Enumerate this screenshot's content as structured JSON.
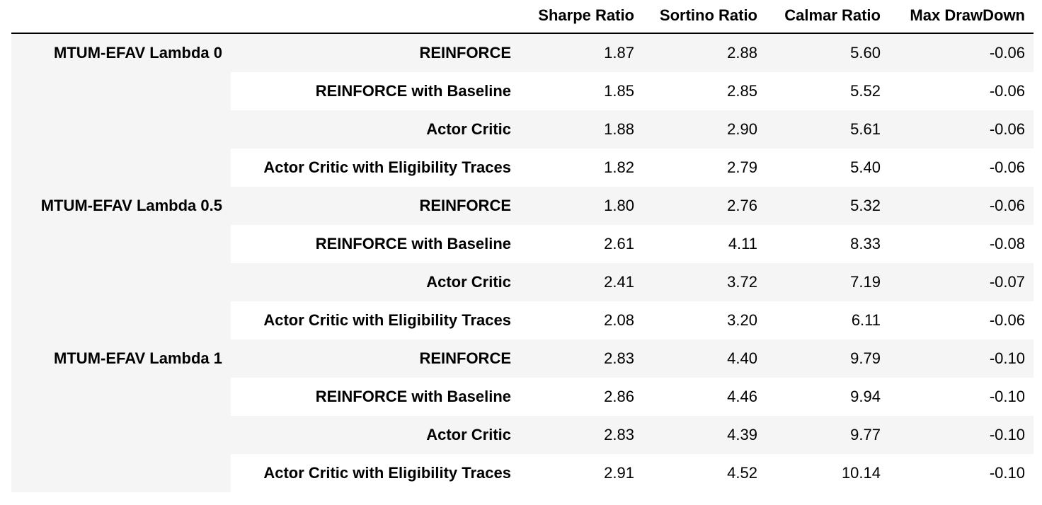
{
  "table": {
    "columns": [
      "Sharpe Ratio",
      "Sortino Ratio",
      "Calmar Ratio",
      "Max DrawDown"
    ],
    "groups": [
      {
        "label": "MTUM-EFAV Lambda 0",
        "rows": [
          {
            "algo": "REINFORCE",
            "values": [
              "1.87",
              "2.88",
              "5.60",
              "-0.06"
            ]
          },
          {
            "algo": "REINFORCE with Baseline",
            "values": [
              "1.85",
              "2.85",
              "5.52",
              "-0.06"
            ]
          },
          {
            "algo": "Actor Critic",
            "values": [
              "1.88",
              "2.90",
              "5.61",
              "-0.06"
            ]
          },
          {
            "algo": "Actor Critic with Eligibility Traces",
            "values": [
              "1.82",
              "2.79",
              "5.40",
              "-0.06"
            ]
          }
        ]
      },
      {
        "label": "MTUM-EFAV Lambda 0.5",
        "rows": [
          {
            "algo": "REINFORCE",
            "values": [
              "1.80",
              "2.76",
              "5.32",
              "-0.06"
            ]
          },
          {
            "algo": "REINFORCE with Baseline",
            "values": [
              "2.61",
              "4.11",
              "8.33",
              "-0.08"
            ]
          },
          {
            "algo": "Actor Critic",
            "values": [
              "2.41",
              "3.72",
              "7.19",
              "-0.07"
            ]
          },
          {
            "algo": "Actor Critic with Eligibility Traces",
            "values": [
              "2.08",
              "3.20",
              "6.11",
              "-0.06"
            ]
          }
        ]
      },
      {
        "label": "MTUM-EFAV Lambda 1",
        "rows": [
          {
            "algo": "REINFORCE",
            "values": [
              "2.83",
              "4.40",
              "9.79",
              "-0.10"
            ]
          },
          {
            "algo": "REINFORCE with Baseline",
            "values": [
              "2.86",
              "4.46",
              "9.94",
              "-0.10"
            ]
          },
          {
            "algo": "Actor Critic",
            "values": [
              "2.83",
              "4.39",
              "9.77",
              "-0.10"
            ]
          },
          {
            "algo": "Actor Critic with Eligibility Traces",
            "values": [
              "2.91",
              "4.52",
              "10.14",
              "-0.10"
            ]
          }
        ]
      }
    ],
    "colors": {
      "stripe": "#f5f5f5",
      "background": "#ffffff",
      "rule": "#000000"
    }
  },
  "chart_data": {
    "type": "table",
    "columns": [
      "Sharpe Ratio",
      "Sortino Ratio",
      "Calmar Ratio",
      "Max DrawDown"
    ],
    "index_levels": [
      [
        "MTUM-EFAV Lambda 0",
        "MTUM-EFAV Lambda 0.5",
        "MTUM-EFAV Lambda 1"
      ],
      [
        "REINFORCE",
        "REINFORCE with Baseline",
        "Actor Critic",
        "Actor Critic with Eligibility Traces"
      ]
    ],
    "rows": [
      {
        "group": "MTUM-EFAV Lambda 0",
        "algo": "REINFORCE",
        "values": [
          1.87,
          2.88,
          5.6,
          -0.06
        ]
      },
      {
        "group": "MTUM-EFAV Lambda 0",
        "algo": "REINFORCE with Baseline",
        "values": [
          1.85,
          2.85,
          5.52,
          -0.06
        ]
      },
      {
        "group": "MTUM-EFAV Lambda 0",
        "algo": "Actor Critic",
        "values": [
          1.88,
          2.9,
          5.61,
          -0.06
        ]
      },
      {
        "group": "MTUM-EFAV Lambda 0",
        "algo": "Actor Critic with Eligibility Traces",
        "values": [
          1.82,
          2.79,
          5.4,
          -0.06
        ]
      },
      {
        "group": "MTUM-EFAV Lambda 0.5",
        "algo": "REINFORCE",
        "values": [
          1.8,
          2.76,
          5.32,
          -0.06
        ]
      },
      {
        "group": "MTUM-EFAV Lambda 0.5",
        "algo": "REINFORCE with Baseline",
        "values": [
          2.61,
          4.11,
          8.33,
          -0.08
        ]
      },
      {
        "group": "MTUM-EFAV Lambda 0.5",
        "algo": "Actor Critic",
        "values": [
          2.41,
          3.72,
          7.19,
          -0.07
        ]
      },
      {
        "group": "MTUM-EFAV Lambda 0.5",
        "algo": "Actor Critic with Eligibility Traces",
        "values": [
          2.08,
          3.2,
          6.11,
          -0.06
        ]
      },
      {
        "group": "MTUM-EFAV Lambda 1",
        "algo": "REINFORCE",
        "values": [
          2.83,
          4.4,
          9.79,
          -0.1
        ]
      },
      {
        "group": "MTUM-EFAV Lambda 1",
        "algo": "REINFORCE with Baseline",
        "values": [
          2.86,
          4.46,
          9.94,
          -0.1
        ]
      },
      {
        "group": "MTUM-EFAV Lambda 1",
        "algo": "Actor Critic",
        "values": [
          2.83,
          4.39,
          9.77,
          -0.1
        ]
      },
      {
        "group": "MTUM-EFAV Lambda 1",
        "algo": "Actor Critic with Eligibility Traces",
        "values": [
          2.91,
          4.52,
          10.14,
          -0.1
        ]
      }
    ]
  }
}
